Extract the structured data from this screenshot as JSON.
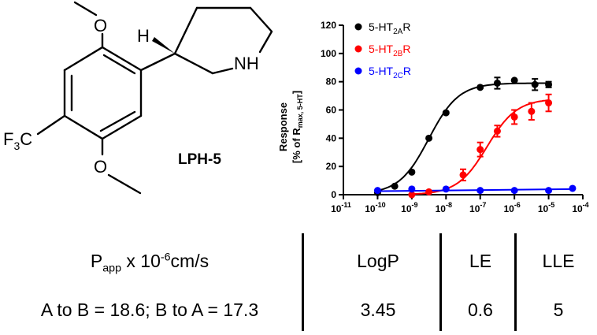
{
  "molecule": {
    "name": "LPH-5",
    "labels": {
      "h": "H",
      "nh": "NH",
      "f3c": "F3C"
    }
  },
  "chart_data": {
    "type": "scatter",
    "ylabel": "Response [% of R max, 5-HT]",
    "ylabel_line1": "Response",
    "ylabel_line2_pre": "[% of R",
    "ylabel_line2_sub": "max, 5-HT",
    "ylabel_line2_post": "]",
    "xscale": "log",
    "xlim_exp": [
      -11,
      -4
    ],
    "ylim": [
      0,
      120
    ],
    "xticks_exp": [
      -11,
      -10,
      -9,
      -8,
      -7,
      -6,
      -5,
      -4
    ],
    "yticks": [
      0,
      20,
      40,
      60,
      80,
      100,
      120
    ],
    "legend_position": "top-left",
    "series": [
      {
        "name": "5-HT2AR",
        "name_main": "5-HT",
        "name_sub": "2A",
        "name_tail": "R",
        "color": "#000000",
        "log_ec50": -8.5,
        "top": 79,
        "bottom": 0.5,
        "points": [
          {
            "x_exp": -10,
            "y": 1.5,
            "err": 0
          },
          {
            "x_exp": -9.5,
            "y": 6,
            "err": 0
          },
          {
            "x_exp": -9,
            "y": 16,
            "err": 0
          },
          {
            "x_exp": -8.5,
            "y": 40,
            "err": 0
          },
          {
            "x_exp": -8,
            "y": 58,
            "err": 0
          },
          {
            "x_exp": -7,
            "y": 76,
            "err": 0
          },
          {
            "x_exp": -6.5,
            "y": 79,
            "err": 4
          },
          {
            "x_exp": -6,
            "y": 81,
            "err": 0
          },
          {
            "x_exp": -5.4,
            "y": 78,
            "err": 4
          },
          {
            "x_exp": -5,
            "y": 78,
            "err": 2
          }
        ]
      },
      {
        "name": "5-HT2BR",
        "name_main": "5-HT",
        "name_sub": "2B",
        "name_tail": "R",
        "color": "#ff0000",
        "log_ec50": -6.8,
        "top": 68,
        "bottom": 0,
        "points": [
          {
            "x_exp": -9,
            "y": 0,
            "err": 0
          },
          {
            "x_exp": -8.5,
            "y": 2,
            "err": 0
          },
          {
            "x_exp": -7.5,
            "y": 14,
            "err": 4
          },
          {
            "x_exp": -7,
            "y": 32,
            "err": 5
          },
          {
            "x_exp": -6.5,
            "y": 45,
            "err": 4
          },
          {
            "x_exp": -6,
            "y": 55,
            "err": 5
          },
          {
            "x_exp": -5.5,
            "y": 59,
            "err": 6
          },
          {
            "x_exp": -5,
            "y": 65,
            "err": 6
          }
        ]
      },
      {
        "name": "5-HT2CR",
        "name_main": "5-HT",
        "name_sub": "2C",
        "name_tail": "R",
        "color": "#0000ff",
        "line_start": 2.5,
        "line_end": 4,
        "points": [
          {
            "x_exp": -10,
            "y": 3,
            "err": 0
          },
          {
            "x_exp": -9,
            "y": 4,
            "err": 0
          },
          {
            "x_exp": -8,
            "y": 4,
            "err": 0
          },
          {
            "x_exp": -7,
            "y": 3,
            "err": 0
          },
          {
            "x_exp": -6,
            "y": 3,
            "err": 0
          },
          {
            "x_exp": -5,
            "y": 3,
            "err": 0
          },
          {
            "x_exp": -4.3,
            "y": 4.5,
            "err": 0
          }
        ]
      }
    ]
  },
  "properties": {
    "papp_main": "P",
    "papp_sub": "app",
    "papp_mid": " x 10",
    "papp_sup": "-6",
    "papp_unit": "cm/s",
    "papp_values": "A to B = 18.6; B to A = 17.3",
    "logp_label": "LogP",
    "logp_value": "3.45",
    "le_label": "LE",
    "le_value": "0.6",
    "lle_label": "LLE",
    "lle_value": "5"
  }
}
